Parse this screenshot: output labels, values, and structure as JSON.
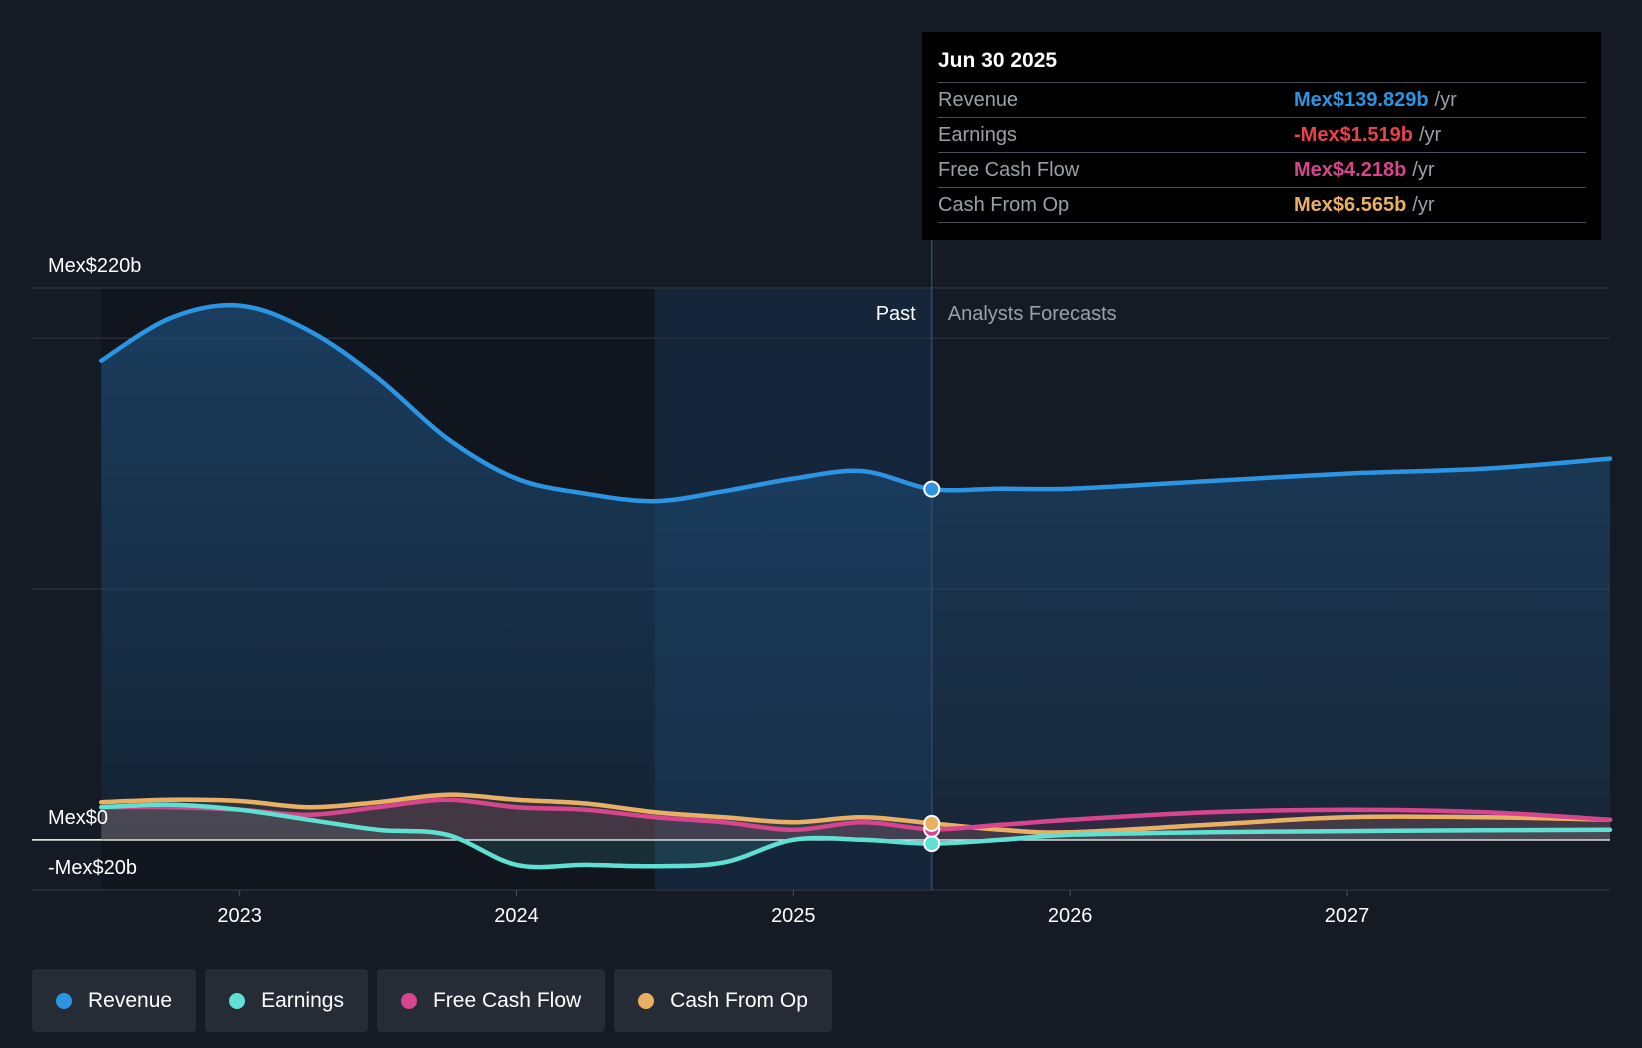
{
  "chart_data": {
    "type": "area",
    "x_label_ticks": [
      "2023",
      "2024",
      "2025",
      "2026",
      "2027"
    ],
    "y_axis_labels": {
      "top": "Mex$220b",
      "zero": "Mex$0",
      "bottom": "-Mex$20b"
    },
    "ylim": [
      -20,
      220
    ],
    "xlim": [
      2022.25,
      2027.95
    ],
    "regions": {
      "past_label": "Past",
      "forecast_label": "Analysts Forecasts",
      "past_end": 2025.5,
      "highlight_start": 2024.5
    },
    "series": [
      {
        "name": "Revenue",
        "color": "#2b94e3",
        "points": [
          [
            2022.5,
            191
          ],
          [
            2022.75,
            208
          ],
          [
            2023.0,
            213
          ],
          [
            2023.25,
            203
          ],
          [
            2023.5,
            184
          ],
          [
            2023.75,
            160
          ],
          [
            2024.0,
            144
          ],
          [
            2024.25,
            138
          ],
          [
            2024.5,
            135
          ],
          [
            2024.75,
            139
          ],
          [
            2025.0,
            144
          ],
          [
            2025.25,
            147
          ],
          [
            2025.5,
            139.829
          ],
          [
            2025.75,
            140
          ],
          [
            2026.0,
            140
          ],
          [
            2026.5,
            143
          ],
          [
            2027.0,
            146
          ],
          [
            2027.5,
            148
          ],
          [
            2027.95,
            152
          ]
        ]
      },
      {
        "name": "Earnings",
        "color": "#5ee0d3",
        "points": [
          [
            2022.5,
            13
          ],
          [
            2022.75,
            14
          ],
          [
            2023.0,
            12
          ],
          [
            2023.25,
            8
          ],
          [
            2023.5,
            4
          ],
          [
            2023.75,
            2
          ],
          [
            2024.0,
            -10
          ],
          [
            2024.25,
            -10
          ],
          [
            2024.5,
            -10.5
          ],
          [
            2024.75,
            -9
          ],
          [
            2025.0,
            0
          ],
          [
            2025.25,
            0
          ],
          [
            2025.5,
            -1.519
          ],
          [
            2025.75,
            0
          ],
          [
            2026.0,
            2
          ],
          [
            2026.5,
            3
          ],
          [
            2027.0,
            3.5
          ],
          [
            2027.5,
            3.8
          ],
          [
            2027.95,
            4
          ]
        ]
      },
      {
        "name": "Free Cash Flow",
        "color": "#d6458e",
        "points": [
          [
            2022.5,
            13
          ],
          [
            2022.75,
            13
          ],
          [
            2023.0,
            12
          ],
          [
            2023.25,
            10
          ],
          [
            2023.5,
            13
          ],
          [
            2023.75,
            16
          ],
          [
            2024.0,
            13
          ],
          [
            2024.25,
            12
          ],
          [
            2024.5,
            9
          ],
          [
            2024.75,
            7
          ],
          [
            2025.0,
            4
          ],
          [
            2025.25,
            7
          ],
          [
            2025.5,
            4.218
          ],
          [
            2025.75,
            6
          ],
          [
            2026.0,
            8
          ],
          [
            2026.5,
            11
          ],
          [
            2027.0,
            12
          ],
          [
            2027.5,
            11
          ],
          [
            2027.95,
            8
          ]
        ]
      },
      {
        "name": "Cash From Op",
        "color": "#e9b064",
        "points": [
          [
            2022.5,
            15
          ],
          [
            2022.75,
            16
          ],
          [
            2023.0,
            15.5
          ],
          [
            2023.25,
            13
          ],
          [
            2023.5,
            15
          ],
          [
            2023.75,
            18
          ],
          [
            2024.0,
            16
          ],
          [
            2024.25,
            14.5
          ],
          [
            2024.5,
            11
          ],
          [
            2024.75,
            9
          ],
          [
            2025.0,
            7
          ],
          [
            2025.25,
            9
          ],
          [
            2025.5,
            6.565
          ],
          [
            2025.75,
            4
          ],
          [
            2026.0,
            3
          ],
          [
            2026.5,
            6
          ],
          [
            2027.0,
            9
          ],
          [
            2027.5,
            9
          ],
          [
            2027.95,
            8
          ]
        ]
      }
    ]
  },
  "tooltip": {
    "date": "Jun 30 2025",
    "unit": "/yr",
    "rows": [
      {
        "label": "Revenue",
        "value": "Mex$139.829b",
        "color": "#2b94e3"
      },
      {
        "label": "Earnings",
        "value": "-Mex$1.519b",
        "color": "#e8424a"
      },
      {
        "label": "Free Cash Flow",
        "value": "Mex$4.218b",
        "color": "#d6458e"
      },
      {
        "label": "Cash From Op",
        "value": "Mex$6.565b",
        "color": "#e9b064"
      }
    ]
  },
  "legend": [
    {
      "label": "Revenue",
      "color": "#2b94e3"
    },
    {
      "label": "Earnings",
      "color": "#5ee0d3"
    },
    {
      "label": "Free Cash Flow",
      "color": "#d6458e"
    },
    {
      "label": "Cash From Op",
      "color": "#e9b064"
    }
  ]
}
